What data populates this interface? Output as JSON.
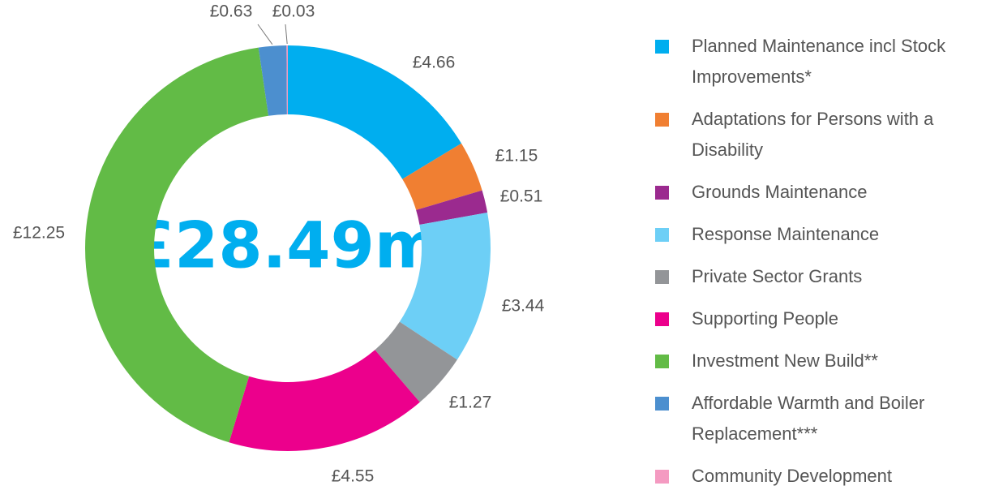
{
  "chart_data": {
    "type": "donut",
    "center_label": "£28.49m",
    "categories": [
      "Planned Maintenance incl Stock Improvements*",
      "Adaptations for Persons with a Disability",
      "Grounds Maintenance",
      "Response Maintenance",
      "Private Sector Grants",
      "Supporting People",
      "Investment New Build**",
      "Affordable Warmth and Boiler Replacement***",
      "Community Development"
    ],
    "values": [
      4.66,
      1.15,
      0.51,
      3.44,
      1.27,
      4.55,
      12.25,
      0.63,
      0.03
    ],
    "value_labels": [
      "£4.66",
      "£1.15",
      "£0.51",
      "£3.44",
      "£1.27",
      "£4.55",
      "£12.25",
      "£0.63",
      "£0.03"
    ],
    "colors": [
      "#00aeef",
      "#f07f32",
      "#9b2a8f",
      "#6dcff6",
      "#939598",
      "#ec008c",
      "#62bb46",
      "#4c8fcf",
      "#f49ac1"
    ],
    "legend": "right"
  }
}
